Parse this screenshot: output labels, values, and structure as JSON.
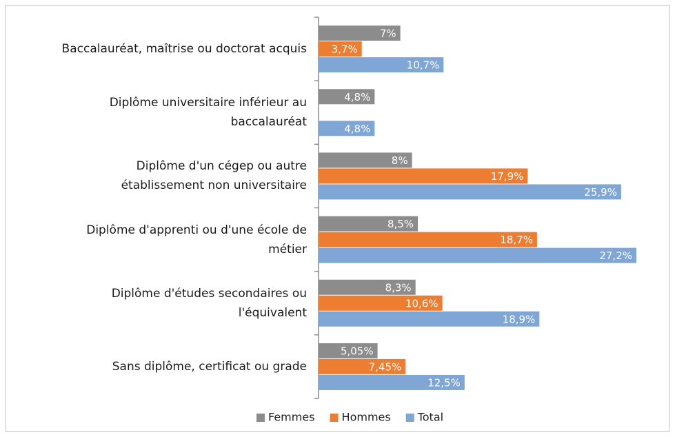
{
  "chart_data": {
    "type": "bar",
    "orientation": "horizontal",
    "categories": [
      "Baccalauréat, maîtrise ou doctorat acquis",
      "Diplôme universitaire inférieur au baccalauréat",
      "Diplôme d'un cégep ou autre établissement non universitaire",
      "Diplôme d'apprenti ou d'une école de métier",
      "Diplôme d'études secondaires ou l'équivalent",
      "Sans diplôme, certificat ou grade"
    ],
    "series": [
      {
        "name": "Femmes",
        "color": "#8c8c8c",
        "values": [
          7,
          4.8,
          8,
          8.5,
          8.3,
          5.05
        ],
        "value_labels": [
          "7%",
          "4,8%",
          "8%",
          "8,5%",
          "8,3%",
          "5,05%"
        ]
      },
      {
        "name": "Hommes",
        "color": "#ed7d31",
        "values": [
          3.7,
          null,
          17.9,
          18.7,
          10.6,
          7.45
        ],
        "value_labels": [
          "3,7%",
          null,
          "17,9%",
          "18,7%",
          "10,6%",
          "7,45%"
        ]
      },
      {
        "name": "Total",
        "color": "#7fa6d4",
        "values": [
          10.7,
          4.8,
          25.9,
          27.2,
          18.9,
          12.5
        ],
        "value_labels": [
          "10,7%",
          "4,8%",
          "25,9%",
          "27,2%",
          "18,9%",
          "12,5%"
        ]
      }
    ],
    "legend": "bottom"
  }
}
